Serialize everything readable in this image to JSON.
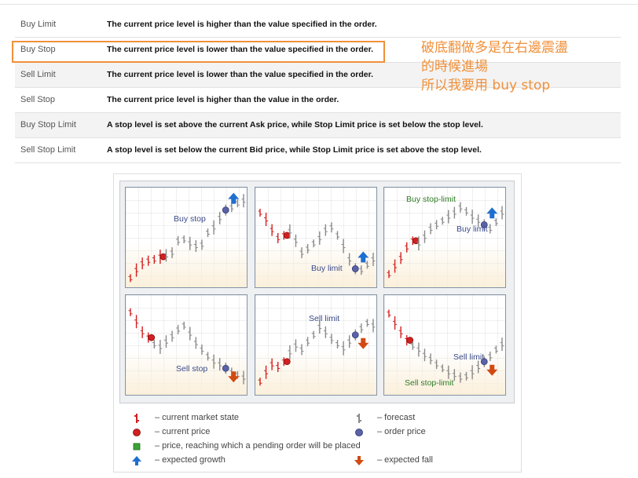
{
  "orders": [
    {
      "type": "Buy Limit",
      "desc": "The current price level is higher than the value specified in the order."
    },
    {
      "type": "Buy Stop",
      "desc": "The current price level is lower than the value specified in the order."
    },
    {
      "type": "Sell Limit",
      "desc": "The current price level is lower than the value specified in the order."
    },
    {
      "type": "Sell Stop",
      "desc": "The current price level is higher than the value in the order."
    },
    {
      "type": "Buy Stop Limit",
      "desc": "A stop level is set above the current Ask price, while Stop Limit price is set below the stop level."
    },
    {
      "type": "Sell Stop Limit",
      "desc": "A stop level is set below the current Bid price, while Stop Limit price is set above the stop level."
    }
  ],
  "annotation": {
    "lines": [
      "破底翻做多是在右邊震盪",
      "的時候進場",
      "所以我要用 buy stop"
    ],
    "color": "#f0903a"
  },
  "panels": [
    {
      "labels": [
        "Buy stop"
      ]
    },
    {
      "labels": [
        "Buy limit"
      ]
    },
    {
      "labels": [
        "Buy stop-limit",
        "Buy limit"
      ]
    },
    {
      "labels": [
        "Sell stop"
      ]
    },
    {
      "labels": [
        "Sell limit"
      ]
    },
    {
      "labels": [
        "Sell limit",
        "Sell stop-limit"
      ]
    }
  ],
  "legend": [
    {
      "icon": "current-market-state-icon",
      "text": "– current market state"
    },
    {
      "icon": "forecast-icon",
      "text": "– forecast"
    },
    {
      "icon": "current-price-icon",
      "text": "– current price"
    },
    {
      "icon": "order-price-icon",
      "text": "– order price"
    },
    {
      "icon": "pending-order-level-icon",
      "text": "– price, reaching which a pending order will be placed"
    },
    {
      "icon": "expected-growth-icon",
      "text": "– expected growth"
    },
    {
      "icon": "expected-fall-icon",
      "text": "– expected fall"
    }
  ],
  "colors": {
    "red": "#d22020",
    "blue_arrow": "#1e6fd0",
    "green_dot": "#3ba335",
    "order_dot": "#5a63a8"
  }
}
